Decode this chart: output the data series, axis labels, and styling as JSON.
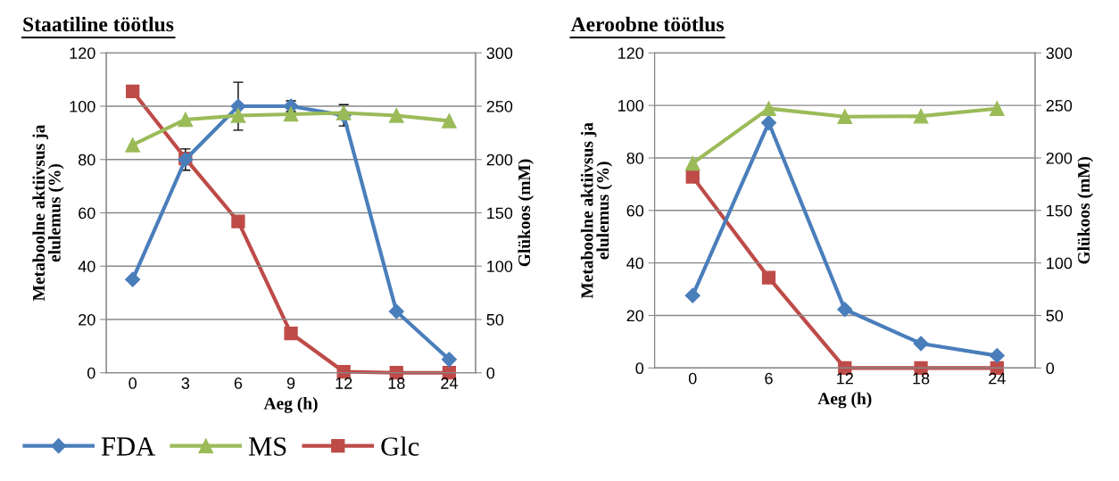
{
  "chart_data": [
    {
      "type": "line",
      "title": "Staatiline töötlus",
      "xlabel": "Aeg (h)",
      "ylabel": "Metaboolne aktiivsus ja\nelulemus (%)",
      "y2label": "Glükoos (mM)",
      "categories": [
        "0",
        "3",
        "6",
        "9",
        "12",
        "18",
        "24"
      ],
      "series": [
        {
          "name": "FDA",
          "color": "#4a7ebb",
          "marker": "diamond",
          "values": [
            35,
            80,
            100,
            100,
            96.6,
            23,
            5
          ],
          "errors": [
            null,
            4,
            9,
            2,
            4,
            null,
            null
          ]
        },
        {
          "name": "MS",
          "color": "#9bbb59",
          "marker": "triangle",
          "values": [
            85.5,
            95,
            96.5,
            97,
            97.5,
            96.5,
            94.5
          ]
        },
        {
          "name": "Glc",
          "color": "#be4b48",
          "marker": "square",
          "axis": "y2",
          "values": [
            264,
            201,
            142,
            37,
            1,
            0,
            0
          ]
        }
      ],
      "ylim": [
        0,
        120
      ],
      "yticks": [
        0,
        20,
        40,
        60,
        80,
        100,
        120
      ],
      "y2lim": [
        0,
        300
      ],
      "y2ticks": [
        0,
        50,
        100,
        150,
        200,
        250,
        300
      ],
      "grid": "y",
      "legend": "bottom"
    },
    {
      "type": "line",
      "title": "Aeroobne töötlus",
      "xlabel": "Aeg (h)",
      "ylabel": "Metaboolne aktiivsus ja\nelulemus (%)",
      "y2label": "Glükoos (mM)",
      "categories": [
        "0",
        "6",
        "12",
        "18",
        "24"
      ],
      "series": [
        {
          "color": "#4a7ebb",
          "marker": "diamond",
          "values": [
            27.6,
            93.4,
            22.3,
            9.3,
            4.7
          ]
        },
        {
          "color": "#9bbb59",
          "marker": "triangle",
          "values": [
            78,
            98.8,
            95.7,
            95.9,
            98.8
          ]
        },
        {
          "color": "#be4b48",
          "marker": "square",
          "axis": "y2",
          "values": [
            182,
            86,
            0,
            0,
            0
          ]
        }
      ],
      "ylim": [
        0,
        120
      ],
      "yticks": [
        0,
        20,
        40,
        60,
        80,
        100,
        120
      ],
      "y2lim": [
        0,
        300
      ],
      "y2ticks": [
        0,
        50,
        100,
        150,
        200,
        250,
        300
      ],
      "grid": "y",
      "legend": false
    }
  ]
}
